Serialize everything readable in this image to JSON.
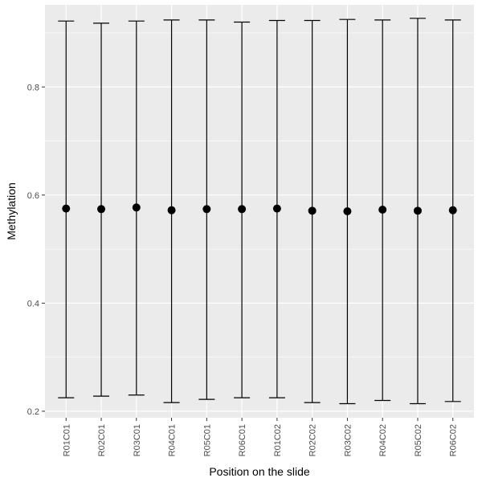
{
  "chart_data": {
    "type": "scatter",
    "title": "",
    "xlabel": "Position on the slide",
    "ylabel": "Methylation",
    "categories": [
      "R01C01",
      "R02C01",
      "R03C01",
      "R04C01",
      "R05C01",
      "R06C01",
      "R01C02",
      "R02C02",
      "R03C02",
      "R04C02",
      "R05C02",
      "R06C02"
    ],
    "values": [
      0.575,
      0.574,
      0.577,
      0.572,
      0.574,
      0.574,
      0.575,
      0.571,
      0.57,
      0.573,
      0.571,
      0.572
    ],
    "error_low": [
      0.225,
      0.228,
      0.23,
      0.216,
      0.222,
      0.225,
      0.225,
      0.216,
      0.214,
      0.22,
      0.214,
      0.218
    ],
    "error_high": [
      0.922,
      0.918,
      0.922,
      0.924,
      0.924,
      0.92,
      0.923,
      0.923,
      0.925,
      0.924,
      0.927,
      0.924
    ],
    "ylim": [
      0.188,
      0.952
    ],
    "yticks": [
      0.2,
      0.4,
      0.6,
      0.8
    ],
    "ytick_labels": [
      "0.2",
      "0.4",
      "0.6",
      "0.8"
    ],
    "grid": true,
    "panel_color": "#ebebeb",
    "grid_color": "#ffffff",
    "mark_color": "#000000"
  }
}
